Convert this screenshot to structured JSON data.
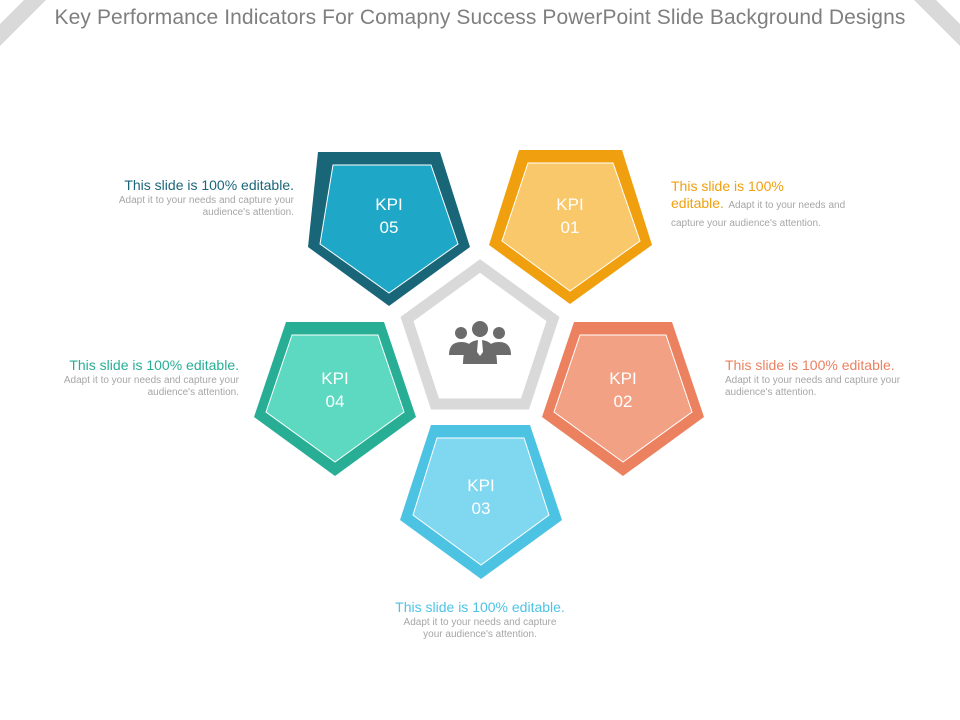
{
  "title": "Key Performance Indicators For Comapny Success PowerPoint Slide Background Designs",
  "center_icon": "people-group-icon",
  "colors": {
    "kpi01_outer": "#f0a00e",
    "kpi01_inner": "#f9c86a",
    "kpi01_text": "#f0a00e",
    "kpi02_outer": "#ec8160",
    "kpi02_inner": "#f3a185",
    "kpi02_text": "#ec8160",
    "kpi03_outer": "#4dc3e3",
    "kpi03_inner": "#80d7f0",
    "kpi03_text": "#4dc3e3",
    "kpi04_outer": "#27ae95",
    "kpi04_inner": "#5cd9c0",
    "kpi04_text": "#27ae95",
    "kpi05_outer": "#1a6679",
    "kpi05_inner": "#1ea7c6",
    "kpi05_text": "#1a6679",
    "center_stroke": "#d9d9d9",
    "icon": "#6b6b6b"
  },
  "kpis": [
    {
      "label": "KPI",
      "number": "01",
      "heading": "This slide is 100%",
      "heading2": "editable.",
      "body": "Adapt it to your needs and capture your audience's attention."
    },
    {
      "label": "KPI",
      "number": "02",
      "heading": "This slide is 100% editable.",
      "body": "Adapt it to your needs and capture your audience's attention."
    },
    {
      "label": "KPI",
      "number": "03",
      "heading": "This slide is 100% editable.",
      "body": "Adapt it to your needs and capture your audience's attention."
    },
    {
      "label": "KPI",
      "number": "04",
      "heading": "This slide is 100% editable.",
      "body": "Adapt it to your needs and capture your audience's attention."
    },
    {
      "label": "KPI",
      "number": "05",
      "heading": "This slide is 100% editable.",
      "body": "Adapt it to your needs and capture your audience's attention."
    }
  ]
}
